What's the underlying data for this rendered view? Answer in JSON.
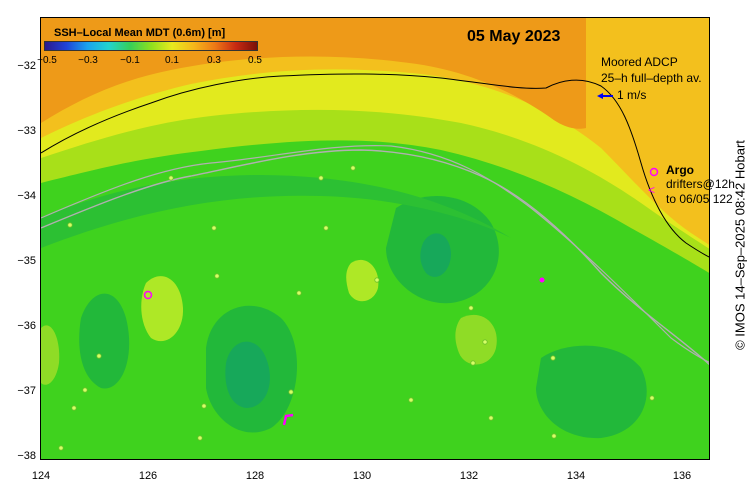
{
  "title": "05 May 2023",
  "colorbar": {
    "label": "SSH–Local Mean MDT (0.6m) [m]",
    "ticks": [
      "−0.5",
      "−0.3",
      "−0.1",
      "0.1",
      "0.3",
      "0.5"
    ]
  },
  "x_axis": {
    "ticks": [
      "124",
      "126",
      "128",
      "130",
      "132",
      "134",
      "136"
    ]
  },
  "y_axis": {
    "ticks": [
      "−32",
      "−33",
      "−34",
      "−35",
      "−36",
      "−37",
      "−38"
    ]
  },
  "legend": {
    "adcp_line1": "Moored ADCP",
    "adcp_line2": "25–h full–depth av.",
    "scale_label": "1 m/s",
    "argo_marker": "o",
    "argo_label": "Argo",
    "drifter_marker": "<",
    "drifters_line1": "drifters@12h",
    "drifters_line2": "to 06/05 122"
  },
  "credit": "© IMOS 14–Sep–2025 08:42 Hobart",
  "colors": {
    "land": "#fdd4a3",
    "argo": "#ff00ff",
    "adcp": "#0000ee",
    "bathymetry": "#b0b0b0"
  },
  "chart_data": {
    "type": "heatmap",
    "title": "05 May 2023",
    "variable": "SSH–Local Mean MDT (0.6m) [m]",
    "color_range": [
      -0.5,
      0.5
    ],
    "xlim": [
      124,
      136.5
    ],
    "ylim": [
      -38,
      -31.3
    ],
    "x_ticks": [
      124,
      126,
      128,
      130,
      132,
      134,
      136
    ],
    "y_ticks": [
      -32,
      -33,
      -34,
      -35,
      -36,
      -37,
      -38
    ],
    "argo_floats": [
      {
        "lon": 126.0,
        "lat": -35.5
      },
      {
        "lon": 135.6,
        "lat": -33.6
      }
    ]
  }
}
